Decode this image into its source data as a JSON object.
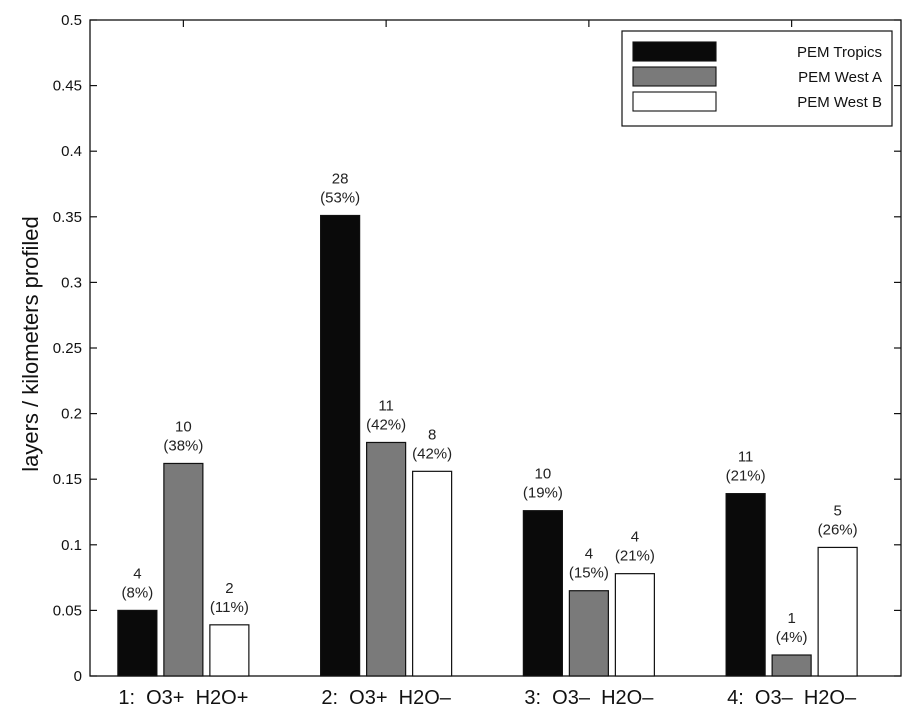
{
  "chart_data": {
    "type": "bar",
    "categories": [
      "1:  O3+  H2O+",
      "2:  O3+  H2O–",
      "3:  O3–  H2O–",
      "4:  O3–  H2O–"
    ],
    "series": [
      {
        "name": "PEM Tropics",
        "color": "#0a0a0a",
        "values": [
          0.05,
          0.351,
          0.126,
          0.139
        ],
        "labels": [
          [
            "4",
            "(8%)"
          ],
          [
            "28",
            "(53%)"
          ],
          [
            "10",
            "(19%)"
          ],
          [
            "11",
            "(21%)"
          ]
        ]
      },
      {
        "name": "PEM West A",
        "color": "#7a7a7a",
        "values": [
          0.162,
          0.178,
          0.065,
          0.016
        ],
        "labels": [
          [
            "10",
            "(38%)"
          ],
          [
            "11",
            "(42%)"
          ],
          [
            "4",
            "(15%)"
          ],
          [
            "1",
            "(4%)"
          ]
        ]
      },
      {
        "name": "PEM West B",
        "color": "#ffffff",
        "values": [
          0.039,
          0.156,
          0.078,
          0.098
        ],
        "labels": [
          [
            "2",
            "(11%)"
          ],
          [
            "8",
            "(42%)"
          ],
          [
            "4",
            "(21%)"
          ],
          [
            "5",
            "(26%)"
          ]
        ]
      }
    ],
    "ylabel": "layers / kilometers profiled",
    "xlabel": "",
    "title": "",
    "ylim": [
      0,
      0.5
    ],
    "yticks": [
      "0",
      "0.05",
      "0.1",
      "0.15",
      "0.2",
      "0.25",
      "0.3",
      "0.35",
      "0.4",
      "0.45",
      "0.5"
    ],
    "legend_position": "top-right",
    "grid": false
  }
}
